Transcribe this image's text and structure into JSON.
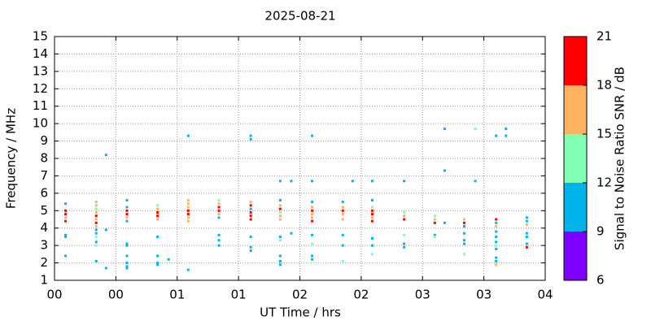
{
  "chart_data": {
    "type": "scatter",
    "title": "2025-08-21",
    "x_label": "UT Time / hrs",
    "y_label": "Frequency / MHz",
    "xlim": [
      0,
      4
    ],
    "ylim": [
      1,
      15
    ],
    "xticks": [
      {
        "value": 0,
        "label": "00"
      },
      {
        "value": 0.5,
        "label": "00"
      },
      {
        "value": 1,
        "label": "01"
      },
      {
        "value": 1.5,
        "label": "01"
      },
      {
        "value": 2,
        "label": "02"
      },
      {
        "value": 2.5,
        "label": "02"
      },
      {
        "value": 3,
        "label": "03"
      },
      {
        "value": 3.5,
        "label": "03"
      },
      {
        "value": 4,
        "label": "04"
      }
    ],
    "yticks": [
      1,
      2,
      3,
      4,
      5,
      6,
      7,
      8,
      9,
      10,
      11,
      12,
      13,
      14,
      15
    ],
    "grid": true,
    "colorbar": {
      "label": "Signal to Noise Ratio SNR / dB",
      "lim": [
        6,
        21
      ],
      "ticks": [
        6,
        9,
        12,
        15,
        18,
        21
      ],
      "colors": [
        "#7f00ff",
        "#00b4eb",
        "#80ffb4",
        "#ffb360",
        "#ff0000"
      ]
    },
    "x": [
      0.09,
      0.09,
      0.09,
      0.09,
      0.09,
      0.09,
      0.09,
      0.09,
      0.34,
      0.34,
      0.34,
      0.34,
      0.34,
      0.34,
      0.34,
      0.34,
      0.34,
      0.34,
      0.34,
      0.34,
      0.34,
      0.34,
      0.42,
      0.42,
      0.42,
      0.59,
      0.59,
      0.59,
      0.59,
      0.59,
      0.59,
      0.59,
      0.59,
      0.59,
      0.59,
      0.59,
      0.59,
      0.84,
      0.84,
      0.84,
      0.84,
      0.84,
      0.84,
      0.84,
      0.84,
      0.84,
      0.93,
      1.09,
      1.09,
      1.09,
      1.09,
      1.09,
      1.09,
      1.09,
      1.09,
      1.09,
      1.34,
      1.34,
      1.34,
      1.34,
      1.34,
      1.34,
      1.34,
      1.34,
      1.34,
      1.6,
      1.6,
      1.6,
      1.6,
      1.6,
      1.6,
      1.6,
      1.6,
      1.6,
      1.6,
      1.6,
      1.84,
      1.84,
      1.84,
      1.84,
      1.84,
      1.84,
      1.84,
      1.84,
      1.84,
      1.84,
      1.84,
      1.84,
      1.93,
      1.93,
      2.1,
      2.1,
      2.1,
      2.1,
      2.1,
      2.1,
      2.1,
      2.1,
      2.1,
      2.1,
      2.1,
      2.1,
      2.35,
      2.35,
      2.35,
      2.35,
      2.35,
      2.35,
      2.35,
      2.35,
      2.43,
      2.59,
      2.59,
      2.59,
      2.59,
      2.59,
      2.59,
      2.59,
      2.59,
      2.59,
      2.59,
      2.85,
      2.85,
      2.85,
      2.85,
      2.85,
      2.85,
      2.85,
      3.1,
      3.1,
      3.1,
      3.1,
      3.1,
      3.18,
      3.18,
      3.18,
      3.34,
      3.34,
      3.34,
      3.34,
      3.34,
      3.34,
      3.34,
      3.43,
      3.43,
      3.6,
      3.6,
      3.6,
      3.6,
      3.6,
      3.6,
      3.6,
      3.6,
      3.6,
      3.6,
      3.6,
      3.6,
      3.68,
      3.68,
      3.85,
      3.85,
      3.85,
      3.85,
      3.85,
      3.85,
      3.85
    ],
    "y": [
      5.4,
      5.0,
      4.8,
      4.6,
      4.4,
      3.6,
      3.5,
      2.4,
      5.5,
      5.3,
      5.1,
      4.9,
      4.7,
      4.5,
      4.3,
      4.1,
      3.9,
      3.7,
      3.5,
      3.2,
      3.0,
      2.1,
      8.2,
      3.9,
      1.7,
      5.6,
      5.2,
      5.0,
      4.8,
      4.6,
      4.4,
      3.1,
      3.0,
      2.4,
      2.0,
      1.8,
      1.7,
      5.3,
      5.1,
      4.9,
      4.7,
      4.5,
      3.5,
      2.4,
      2.0,
      1.9,
      2.2,
      9.3,
      5.6,
      5.4,
      5.2,
      5.0,
      4.8,
      4.6,
      4.4,
      1.6,
      5.6,
      5.4,
      5.2,
      5.0,
      4.8,
      4.6,
      3.6,
      3.3,
      3.0,
      9.3,
      9.1,
      5.5,
      5.3,
      5.1,
      4.9,
      4.7,
      4.5,
      3.5,
      2.9,
      2.7,
      6.7,
      5.6,
      5.3,
      5.1,
      4.9,
      4.7,
      4.5,
      3.5,
      3.3,
      2.4,
      2.1,
      1.9,
      6.7,
      3.7,
      9.3,
      6.7,
      5.5,
      5.2,
      5.0,
      4.8,
      4.6,
      4.4,
      3.6,
      3.1,
      2.4,
      2.2,
      5.5,
      5.2,
      5.0,
      4.8,
      4.5,
      3.6,
      3.0,
      2.1,
      6.7,
      6.7,
      5.6,
      5.2,
      5.0,
      4.8,
      4.6,
      4.4,
      3.4,
      3.0,
      2.5,
      6.7,
      4.9,
      4.7,
      4.5,
      3.6,
      3.1,
      2.9,
      4.7,
      4.5,
      4.3,
      3.6,
      3.5,
      9.7,
      7.3,
      4.3,
      4.5,
      4.3,
      4.1,
      3.7,
      3.3,
      3.1,
      2.5,
      9.7,
      6.7,
      9.3,
      4.5,
      4.3,
      4.1,
      3.8,
      3.5,
      3.2,
      3.0,
      2.8,
      2.3,
      2.1,
      1.9,
      9.7,
      9.3,
      4.6,
      4.4,
      4.2,
      3.7,
      3.5,
      3.1,
      2.9
    ],
    "snr": [
      10,
      19,
      19,
      17,
      19,
      10,
      10,
      10,
      16,
      16,
      14,
      17,
      19,
      17,
      19,
      16,
      10,
      10,
      13,
      10,
      13,
      10,
      10,
      10,
      10,
      10,
      10,
      19,
      19,
      17,
      10,
      10,
      10,
      10,
      10,
      10,
      10,
      14,
      17,
      19,
      19,
      16,
      10,
      10,
      10,
      10,
      10,
      10,
      16,
      16,
      16,
      19,
      19,
      16,
      17,
      10,
      14,
      16,
      19,
      19,
      17,
      10,
      10,
      10,
      10,
      10,
      10,
      16,
      19,
      10,
      19,
      19,
      19,
      10,
      10,
      10,
      10,
      10,
      16,
      19,
      14,
      16,
      16,
      10,
      13,
      10,
      10,
      10,
      10,
      10,
      10,
      10,
      10,
      16,
      19,
      16,
      17,
      19,
      10,
      13,
      10,
      10,
      10,
      16,
      19,
      17,
      17,
      10,
      10,
      13,
      10,
      10,
      10,
      13,
      19,
      19,
      16,
      19,
      10,
      10,
      13,
      10,
      14,
      17,
      19,
      14,
      10,
      10,
      14,
      17,
      19,
      10,
      14,
      10,
      10,
      10,
      16,
      19,
      10,
      10,
      10,
      10,
      14,
      14,
      10,
      10,
      19,
      10,
      17,
      10,
      10,
      10,
      14,
      10,
      10,
      10,
      17,
      10,
      10,
      10,
      10,
      17,
      10,
      10,
      10,
      19
    ]
  }
}
